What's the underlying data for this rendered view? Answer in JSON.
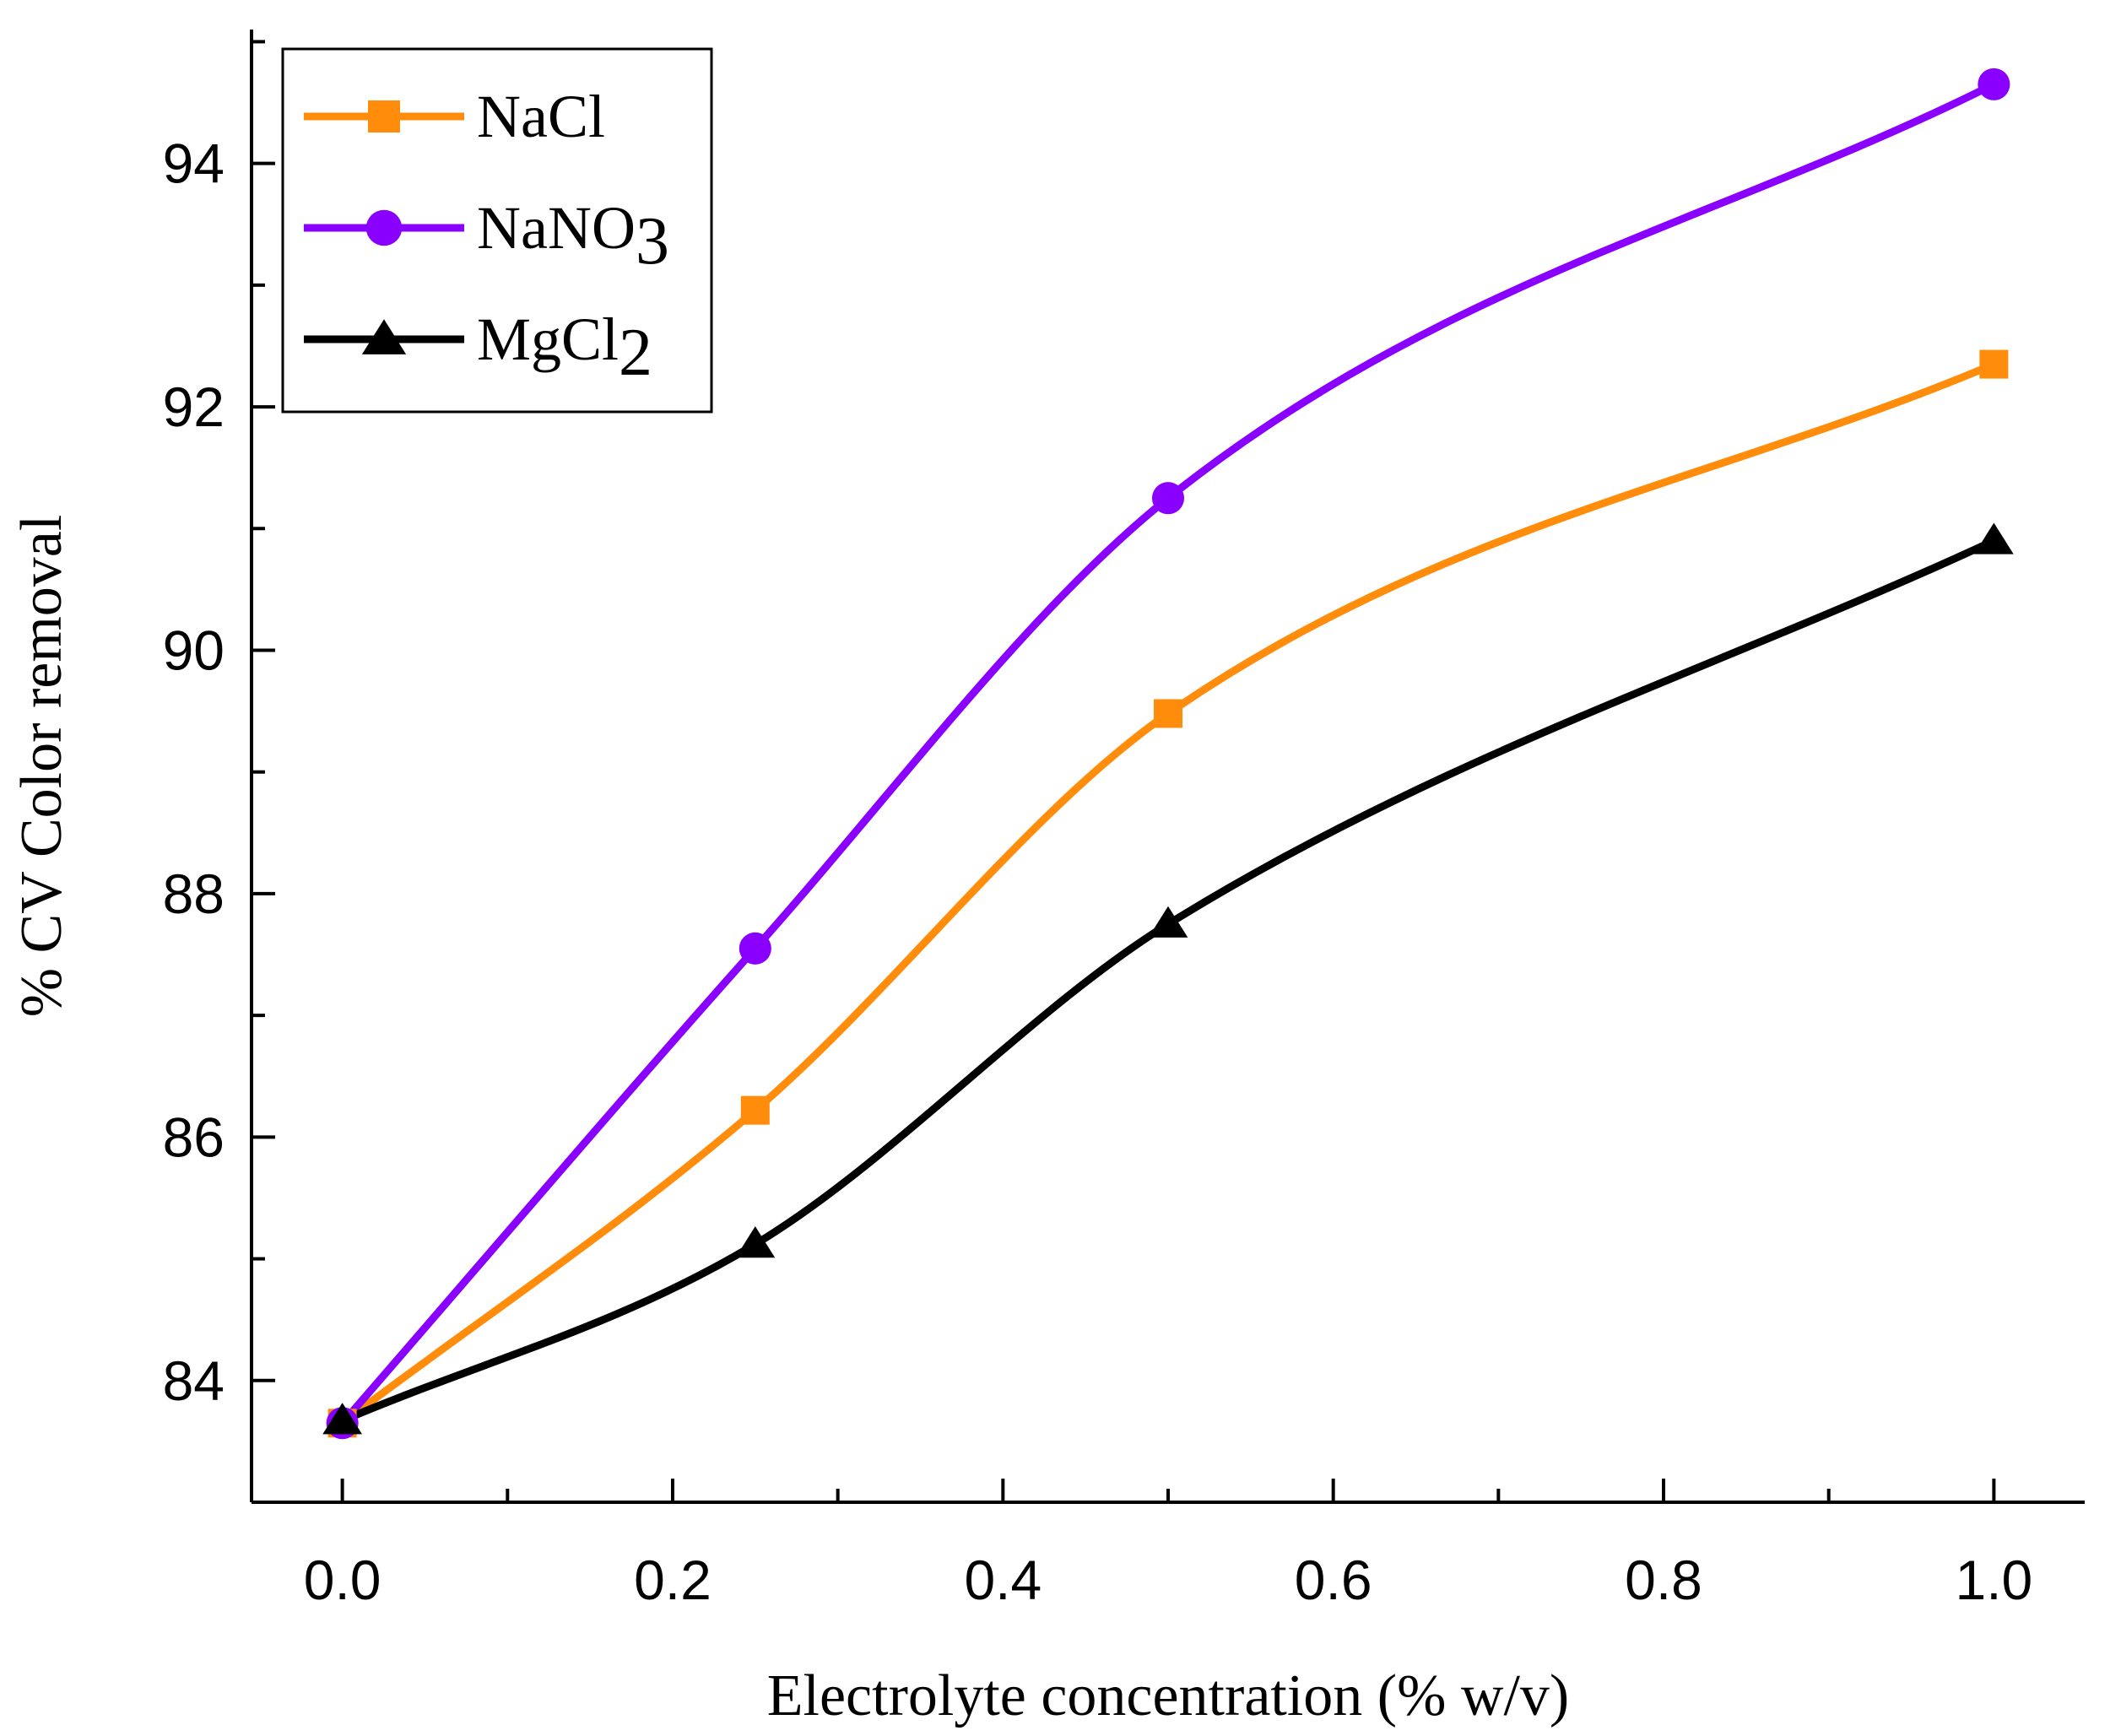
{
  "chart_data": {
    "type": "line",
    "title": "",
    "xlabel": "Electrolyte concentration (% w/v)",
    "ylabel": "% CV Color removal",
    "xlim": [
      -0.055,
      1.055
    ],
    "ylim": [
      83,
      95.1
    ],
    "xticks": [
      0.0,
      0.2,
      0.4,
      0.6,
      0.8,
      1.0
    ],
    "xtick_labels": [
      "0.0",
      "0.2",
      "0.4",
      "0.6",
      "0.8",
      "1.0"
    ],
    "yticks": [
      84,
      86,
      88,
      90,
      92,
      94
    ],
    "ytick_labels": [
      "84",
      "86",
      "88",
      "90",
      "92",
      "94"
    ],
    "grid": false,
    "legend_position": "top-left",
    "x": [
      0,
      0.25,
      0.5,
      1.0
    ],
    "series": [
      {
        "name": "NaCl",
        "label_main": "NaCl",
        "label_sub": "",
        "color": "#ff8c0a",
        "marker": "square",
        "values": [
          83.65,
          86.22,
          89.48,
          92.35
        ]
      },
      {
        "name": "NaNO3",
        "label_main": "NaNO",
        "label_sub": "3",
        "color": "#8a00ff",
        "marker": "circle",
        "values": [
          83.65,
          87.55,
          91.25,
          94.65
        ]
      },
      {
        "name": "MgCl2",
        "label_main": "MgCl",
        "label_sub": "2",
        "color": "#000000",
        "marker": "triangle",
        "values": [
          83.67,
          85.12,
          87.75,
          90.9
        ]
      }
    ]
  }
}
